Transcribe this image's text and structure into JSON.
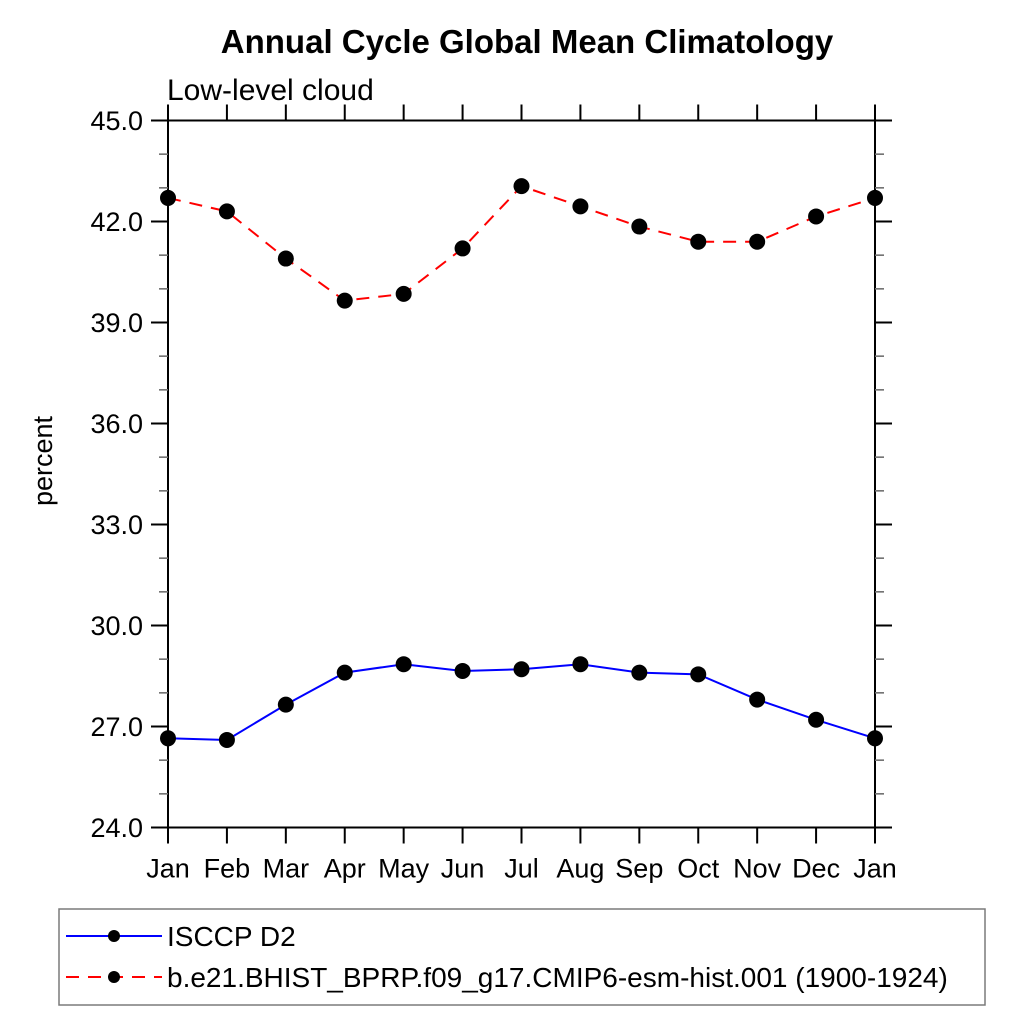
{
  "chart_data": {
    "type": "line",
    "title": "Annual Cycle Global Mean Climatology",
    "subtitle": "Low-level cloud",
    "ylabel": "percent",
    "xlabel": "",
    "categories": [
      "Jan",
      "Feb",
      "Mar",
      "Apr",
      "May",
      "Jun",
      "Jul",
      "Aug",
      "Sep",
      "Oct",
      "Nov",
      "Dec",
      "Jan"
    ],
    "ylim": [
      24.0,
      45.0
    ],
    "y_major_ticks": [
      24.0,
      27.0,
      30.0,
      33.0,
      36.0,
      39.0,
      42.0,
      45.0
    ],
    "y_minor_step": 1.0,
    "y_tick_format": "one_decimal",
    "grid": false,
    "legend_position": "bottom-left",
    "marker": "filled-circle",
    "marker_color": "#000000",
    "series": [
      {
        "name": "ISCCP D2",
        "color": "#0000ff",
        "line_style": "solid",
        "values": [
          26.65,
          26.6,
          27.65,
          28.6,
          28.85,
          28.65,
          28.7,
          28.85,
          28.6,
          28.55,
          27.8,
          27.2,
          26.65
        ]
      },
      {
        "name": "b.e21.BHIST_BPRP.f09_g17.CMIP6-esm-hist.001 (1900-1924)",
        "color": "#ff0000",
        "line_style": "dashed",
        "values": [
          42.7,
          42.3,
          40.9,
          39.65,
          39.85,
          41.2,
          43.05,
          42.45,
          41.85,
          41.4,
          41.4,
          42.15,
          42.7
        ]
      }
    ]
  }
}
